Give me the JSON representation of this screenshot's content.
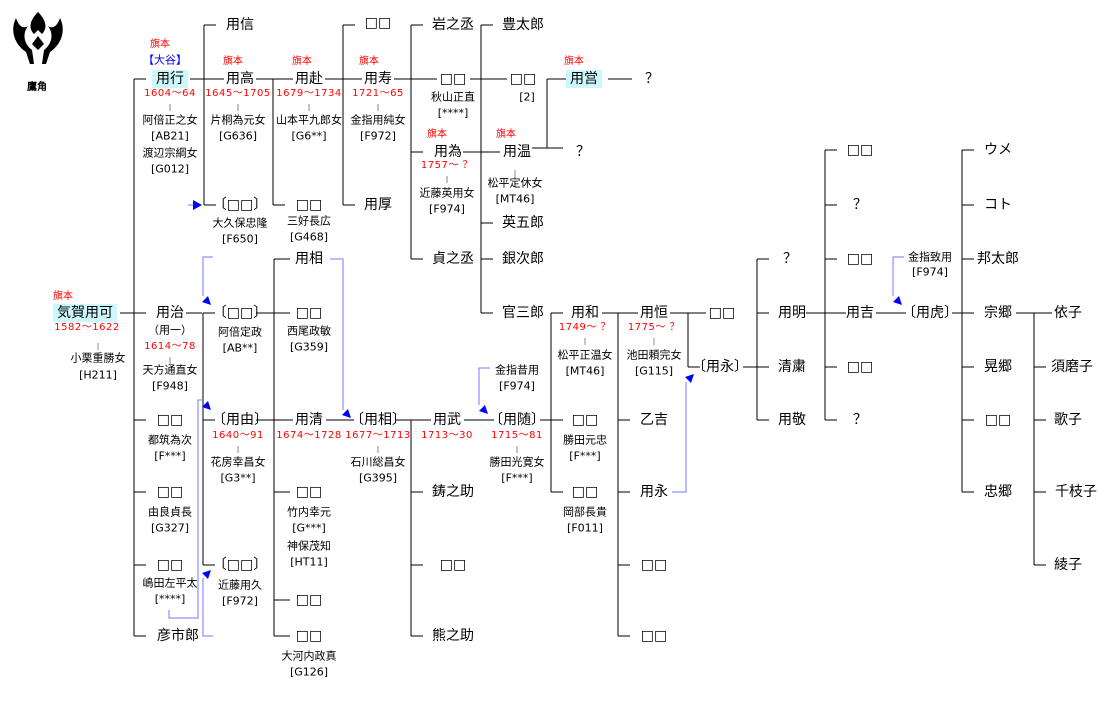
{
  "crest": {
    "label": "鷹角"
  },
  "colors": {
    "highlight": "#ccf8fb",
    "date": "#ff0000",
    "house": "#0000ff",
    "adoption_arrow": "#0000ff"
  },
  "labels": [
    {
      "t": "用信",
      "k": "n"
    },
    {
      "t": "□□",
      "k": "n"
    },
    {
      "t": "岩之丞",
      "k": "n"
    },
    {
      "t": "豊太郎",
      "k": "n"
    },
    {
      "t": "旗本",
      "k": "r"
    },
    {
      "t": "【大谷】",
      "k": "h"
    },
    {
      "t": "用行",
      "k": "nh"
    },
    {
      "t": "1604〜64",
      "k": "d"
    },
    {
      "t": "阿倍正之女",
      "k": "s"
    },
    {
      "t": "[AB21]",
      "k": "s"
    },
    {
      "t": "渡辺宗綱女",
      "k": "s"
    },
    {
      "t": "[G012]",
      "k": "s"
    },
    {
      "t": "旗本",
      "k": "r"
    },
    {
      "t": "用高",
      "k": "n"
    },
    {
      "t": "1645〜1705",
      "k": "d"
    },
    {
      "t": "片桐為元女",
      "k": "s"
    },
    {
      "t": "[G636]",
      "k": "s"
    },
    {
      "t": "旗本",
      "k": "r"
    },
    {
      "t": "用赴",
      "k": "n"
    },
    {
      "t": "1679〜1734",
      "k": "d"
    },
    {
      "t": "山本平九郎女",
      "k": "s"
    },
    {
      "t": "[G6**]",
      "k": "s"
    },
    {
      "t": "旗本",
      "k": "r"
    },
    {
      "t": "用寿",
      "k": "n"
    },
    {
      "t": "1721〜65",
      "k": "d"
    },
    {
      "t": "金指用純女",
      "k": "s"
    },
    {
      "t": "[F972]",
      "k": "s"
    },
    {
      "t": "□□",
      "k": "n"
    },
    {
      "t": "秋山正直",
      "k": "s"
    },
    {
      "t": "[****]",
      "k": "s"
    },
    {
      "t": "□□",
      "k": "n"
    },
    {
      "t": "[2]",
      "k": "s"
    },
    {
      "t": "旗本",
      "k": "r"
    },
    {
      "t": "用営",
      "k": "nh"
    },
    {
      "t": "？",
      "k": "n"
    },
    {
      "t": "旗本",
      "k": "r"
    },
    {
      "t": "用為",
      "k": "n"
    },
    {
      "t": "1757〜 ？",
      "k": "d"
    },
    {
      "t": "近藤英用女",
      "k": "s"
    },
    {
      "t": "[F974]",
      "k": "s"
    },
    {
      "t": "旗本",
      "k": "r"
    },
    {
      "t": "用温",
      "k": "n"
    },
    {
      "t": "松平定休女",
      "k": "s"
    },
    {
      "t": "[MT46]",
      "k": "s"
    },
    {
      "t": "？",
      "k": "n"
    },
    {
      "t": "英五郎",
      "k": "n"
    },
    {
      "t": "貞之丞",
      "k": "n"
    },
    {
      "t": "銀次郎",
      "k": "n"
    },
    {
      "t": "官三郎",
      "k": "n"
    },
    {
      "t": "〔□□〕",
      "k": "n"
    },
    {
      "t": "大久保忠隆",
      "k": "s"
    },
    {
      "t": "[F650]",
      "k": "s"
    },
    {
      "t": "□□",
      "k": "n"
    },
    {
      "t": "三好長広",
      "k": "s"
    },
    {
      "t": "[G468]",
      "k": "s"
    },
    {
      "t": "用厚",
      "k": "n"
    },
    {
      "t": "旗本",
      "k": "r"
    },
    {
      "t": "気賀用可",
      "k": "nh"
    },
    {
      "t": "1582〜1622",
      "k": "d"
    },
    {
      "t": "小栗重勝女",
      "k": "s"
    },
    {
      "t": "[H211]",
      "k": "s"
    },
    {
      "t": "用治",
      "k": "n"
    },
    {
      "t": "（用一）",
      "k": "s"
    },
    {
      "t": "1614〜78",
      "k": "d"
    },
    {
      "t": "天方通直女",
      "k": "s"
    },
    {
      "t": "[F948]",
      "k": "s"
    },
    {
      "t": "〔□□〕",
      "k": "n"
    },
    {
      "t": "阿倍定政",
      "k": "s"
    },
    {
      "t": "[AB**]",
      "k": "s"
    },
    {
      "t": "用相",
      "k": "n"
    },
    {
      "t": "□□",
      "k": "n"
    },
    {
      "t": "西尾政敏",
      "k": "s"
    },
    {
      "t": "[G359]",
      "k": "s"
    },
    {
      "t": "〔用由〕",
      "k": "n"
    },
    {
      "t": "1640〜91",
      "k": "d"
    },
    {
      "t": "花房幸昌女",
      "k": "s"
    },
    {
      "t": "[G3**]",
      "k": "s"
    },
    {
      "t": "用清",
      "k": "n"
    },
    {
      "t": "1674〜1728",
      "k": "d"
    },
    {
      "t": "〔用相〕",
      "k": "n"
    },
    {
      "t": "1677〜1713",
      "k": "d"
    },
    {
      "t": "石川総昌女",
      "k": "s"
    },
    {
      "t": "[G395]",
      "k": "s"
    },
    {
      "t": "用武",
      "k": "n"
    },
    {
      "t": "1713〜30",
      "k": "d"
    },
    {
      "t": "〔用随〕",
      "k": "n"
    },
    {
      "t": "1715〜81",
      "k": "d"
    },
    {
      "t": "勝田光寛女",
      "k": "s"
    },
    {
      "t": "[F***]",
      "k": "s"
    },
    {
      "t": "金指昔用",
      "k": "s"
    },
    {
      "t": "[F974]",
      "k": "s"
    },
    {
      "t": "用和",
      "k": "n"
    },
    {
      "t": "1749〜 ？",
      "k": "d"
    },
    {
      "t": "松平正温女",
      "k": "s"
    },
    {
      "t": "[MT46]",
      "k": "s"
    },
    {
      "t": "□□",
      "k": "n"
    },
    {
      "t": "勝田元忠",
      "k": "s"
    },
    {
      "t": "[F***]",
      "k": "s"
    },
    {
      "t": "□□",
      "k": "n"
    },
    {
      "t": "岡部長貴",
      "k": "s"
    },
    {
      "t": "[F011]",
      "k": "s"
    },
    {
      "t": "用恒",
      "k": "n"
    },
    {
      "t": "1775〜 ？",
      "k": "d"
    },
    {
      "t": "池田頼完女",
      "k": "s"
    },
    {
      "t": "[G115]",
      "k": "s"
    },
    {
      "t": "□□",
      "k": "n"
    },
    {
      "t": "〔用永〕",
      "k": "n"
    },
    {
      "t": "乙吉",
      "k": "n"
    },
    {
      "t": "用永",
      "k": "n"
    },
    {
      "t": "□□",
      "k": "n"
    },
    {
      "t": "□□",
      "k": "n"
    },
    {
      "t": "？",
      "k": "n"
    },
    {
      "t": "用明",
      "k": "n"
    },
    {
      "t": "清粛",
      "k": "n"
    },
    {
      "t": "用敬",
      "k": "n"
    },
    {
      "t": "□□",
      "k": "n"
    },
    {
      "t": "？",
      "k": "n"
    },
    {
      "t": "□□",
      "k": "n"
    },
    {
      "t": "用吉",
      "k": "n"
    },
    {
      "t": "□□",
      "k": "n"
    },
    {
      "t": "？",
      "k": "n"
    },
    {
      "t": "金指致用",
      "k": "s"
    },
    {
      "t": "[F974]",
      "k": "s"
    },
    {
      "t": "〔用虎〕",
      "k": "n"
    },
    {
      "t": "ウメ",
      "k": "n"
    },
    {
      "t": "コト",
      "k": "n"
    },
    {
      "t": "邦太郎",
      "k": "n"
    },
    {
      "t": "宗郷",
      "k": "n"
    },
    {
      "t": "晃郷",
      "k": "n"
    },
    {
      "t": "□□",
      "k": "n"
    },
    {
      "t": "忠郷",
      "k": "n"
    },
    {
      "t": "依子",
      "k": "n"
    },
    {
      "t": "須磨子",
      "k": "n"
    },
    {
      "t": "歌子",
      "k": "n"
    },
    {
      "t": "千枝子",
      "k": "n"
    },
    {
      "t": "綾子",
      "k": "n"
    },
    {
      "t": "□□",
      "k": "n"
    },
    {
      "t": "都筑為次",
      "k": "s"
    },
    {
      "t": "[F***]",
      "k": "s"
    },
    {
      "t": "□□",
      "k": "n"
    },
    {
      "t": "由良貞長",
      "k": "s"
    },
    {
      "t": "[G327]",
      "k": "s"
    },
    {
      "t": "□□",
      "k": "n"
    },
    {
      "t": "嶋田左平太",
      "k": "s"
    },
    {
      "t": "[****]",
      "k": "s"
    },
    {
      "t": "彦市郎",
      "k": "n"
    },
    {
      "t": "〔□□〕",
      "k": "n"
    },
    {
      "t": "近藤用久",
      "k": "s"
    },
    {
      "t": "[F972]",
      "k": "s"
    },
    {
      "t": "□□",
      "k": "n"
    },
    {
      "t": "竹内幸元",
      "k": "s"
    },
    {
      "t": "[G***]",
      "k": "s"
    },
    {
      "t": "神保茂知",
      "k": "s"
    },
    {
      "t": "[HT11]",
      "k": "s"
    },
    {
      "t": "□□",
      "k": "n"
    },
    {
      "t": "□□",
      "k": "n"
    },
    {
      "t": "大河内政真",
      "k": "s"
    },
    {
      "t": "[G126]",
      "k": "s"
    },
    {
      "t": "鋳之助",
      "k": "n"
    },
    {
      "t": "□□",
      "k": "n"
    },
    {
      "t": "熊之助",
      "k": "n"
    }
  ]
}
